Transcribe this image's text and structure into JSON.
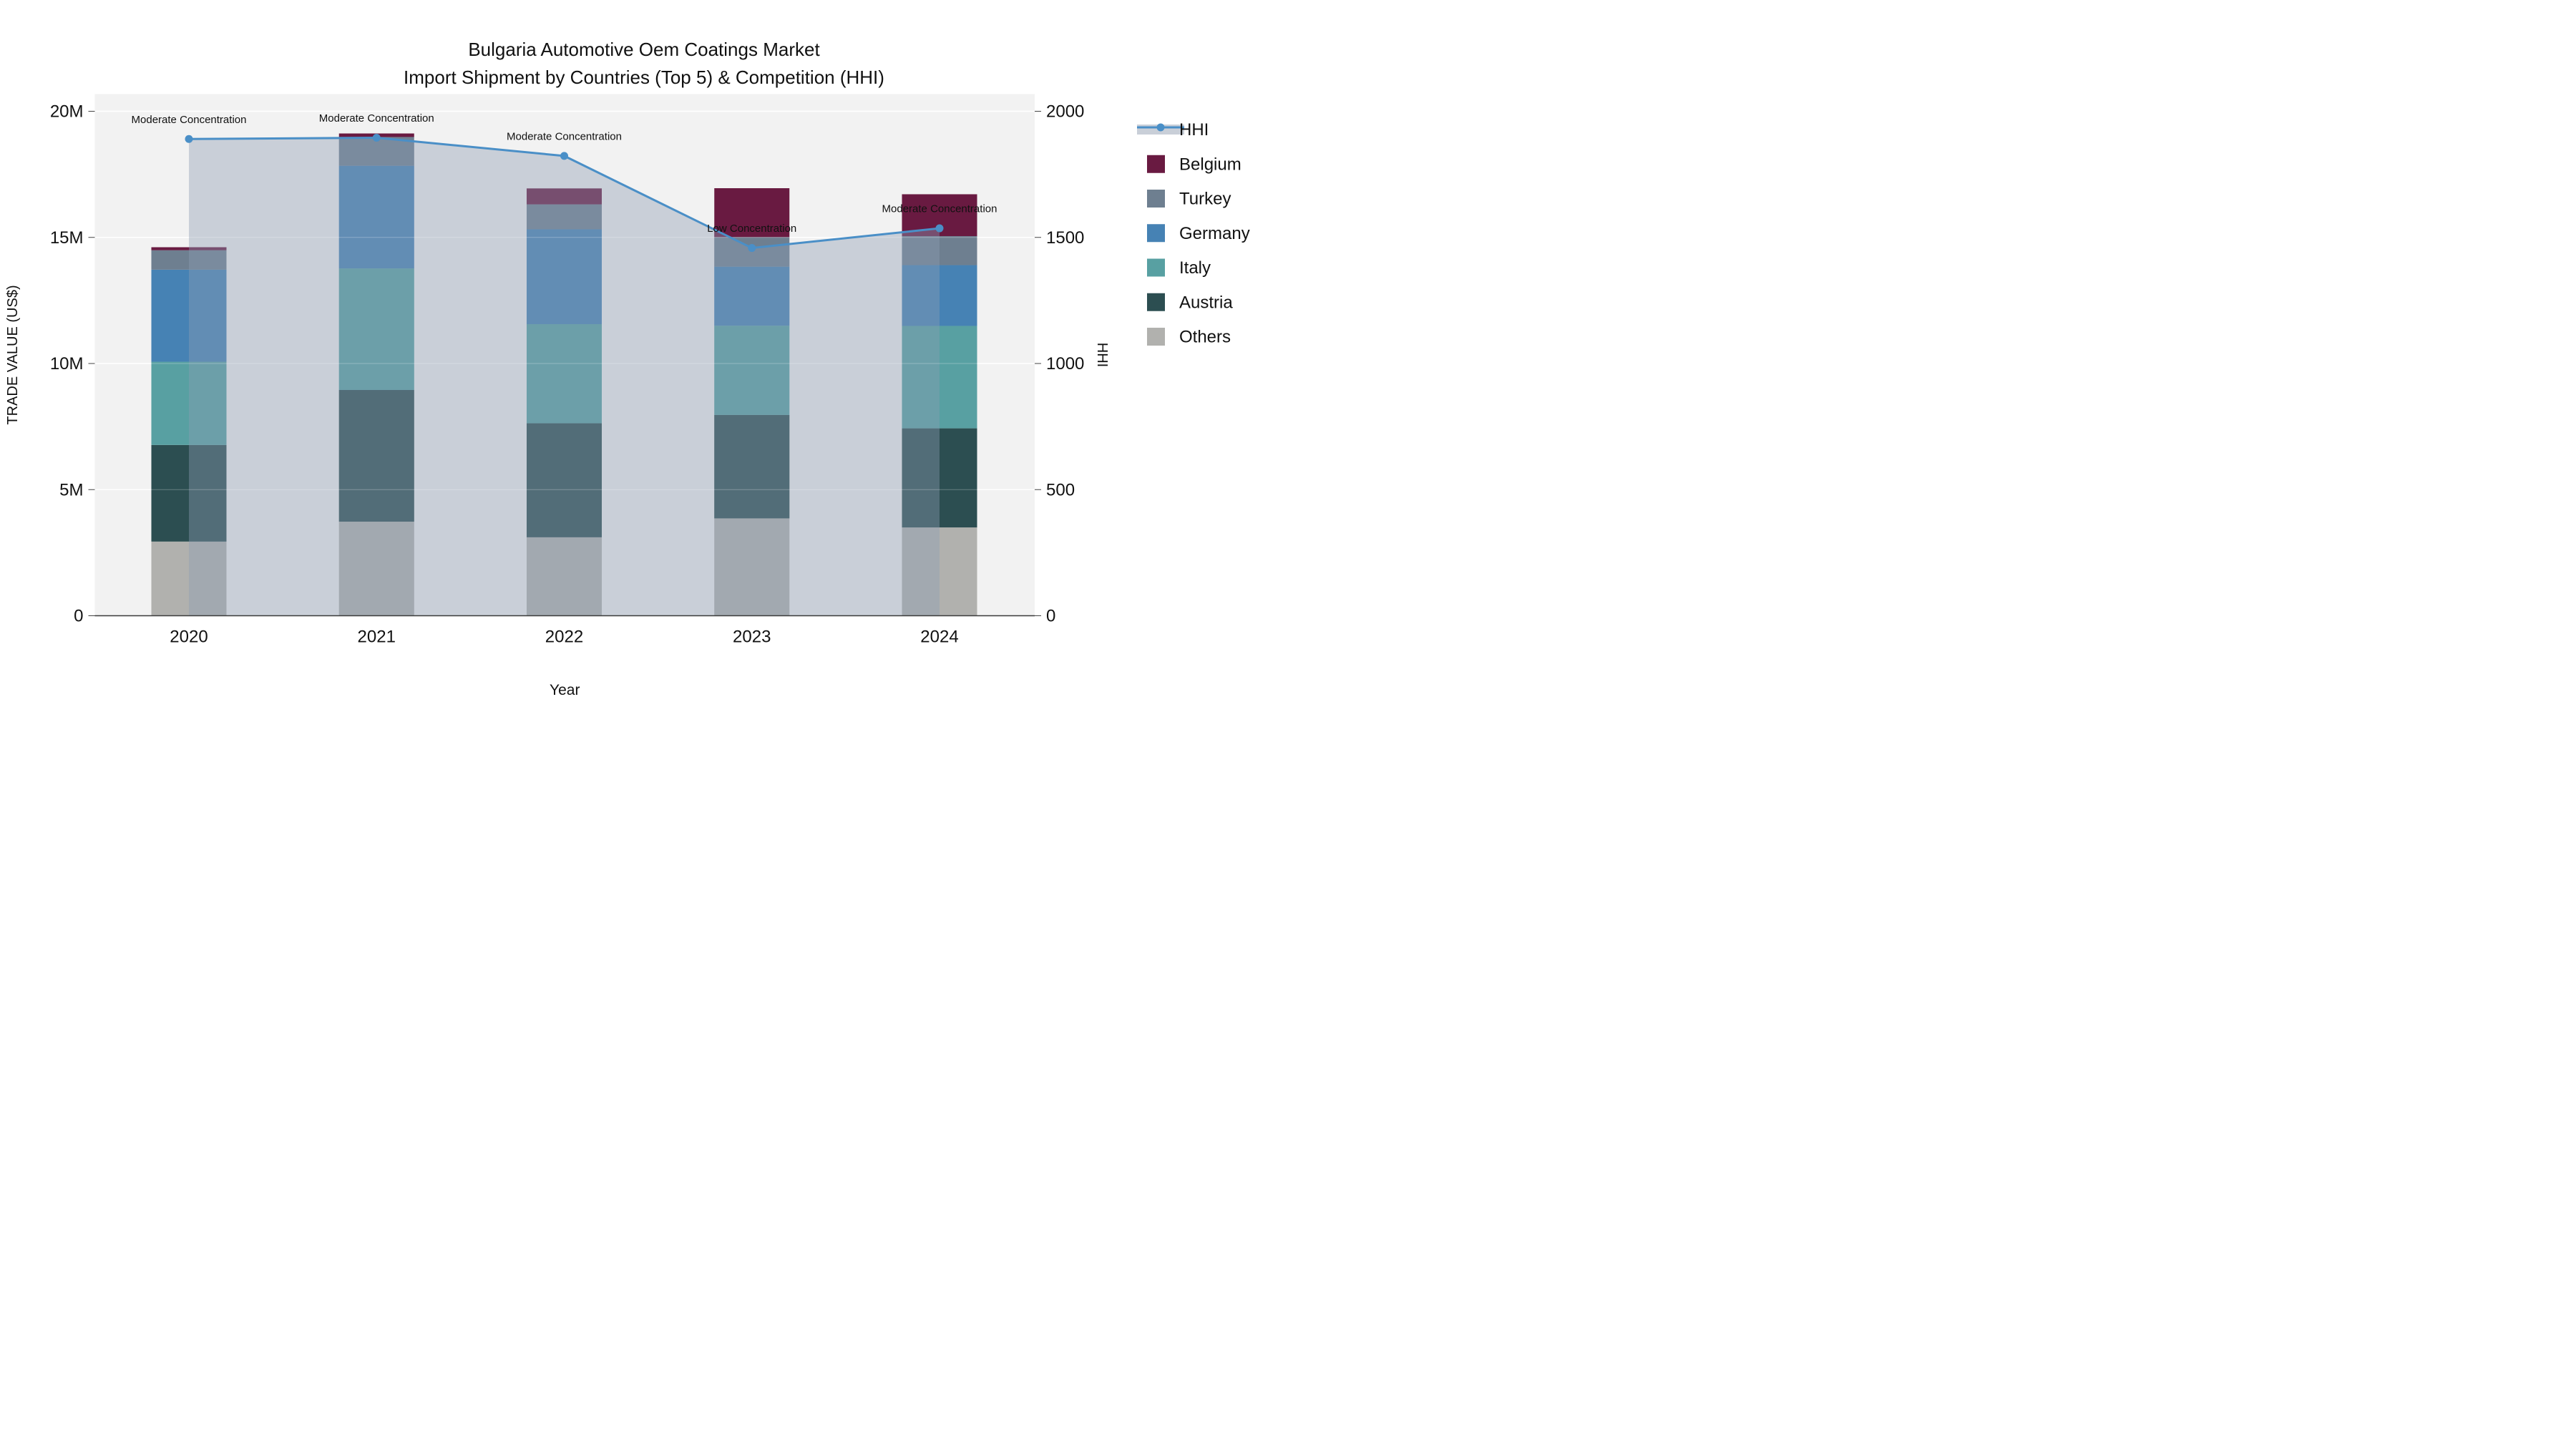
{
  "title_line1": "Bulgaria Automotive Oem Coatings Market",
  "title_line2": "Import Shipment by Countries (Top 5) & Competition (HHI)",
  "chart_data": {
    "type": "combo_stacked_bar_line",
    "x_axis_title": "Year",
    "y_axis_title": "TRADE VALUE (US$)",
    "y2_axis_title": "HHI",
    "categories": [
      "2020",
      "2021",
      "2022",
      "2023",
      "2024"
    ],
    "y_tick_labels": [
      "0",
      "5M",
      "10M",
      "15M",
      "20M"
    ],
    "y_tick_values": [
      0,
      5,
      10,
      15,
      20
    ],
    "ylim": [
      0,
      20
    ],
    "y2_tick_labels": [
      "0",
      "500",
      "1000",
      "1500",
      "2000"
    ],
    "y2_tick_values": [
      0,
      500,
      1000,
      1500,
      2000
    ],
    "y2lim": [
      0,
      2000
    ],
    "grid": true,
    "bar_stack_order_bottom_to_top": [
      "Others",
      "Austria",
      "Italy",
      "Germany",
      "Turkey",
      "Belgium"
    ],
    "series": [
      {
        "name": "Others",
        "type": "bar",
        "values_musd": [
          2.94,
          3.73,
          3.11,
          3.86,
          3.5
        ]
      },
      {
        "name": "Austria",
        "type": "bar",
        "values_musd": [
          3.83,
          5.22,
          4.52,
          4.1,
          3.93
        ]
      },
      {
        "name": "Italy",
        "type": "bar",
        "values_musd": [
          3.3,
          4.82,
          3.93,
          3.54,
          4.06
        ]
      },
      {
        "name": "Germany",
        "type": "bar",
        "values_musd": [
          3.65,
          4.07,
          3.76,
          2.34,
          2.41
        ]
      },
      {
        "name": "Turkey",
        "type": "bar",
        "values_musd": [
          0.77,
          1.14,
          0.99,
          1.17,
          1.15
        ]
      },
      {
        "name": "Belgium",
        "type": "bar",
        "values_musd": [
          0.12,
          0.14,
          0.63,
          1.94,
          1.66
        ]
      }
    ],
    "bar_totals_musd": [
      14.61,
      19.12,
      16.94,
      16.95,
      16.71
    ],
    "line_series": {
      "name": "HHI",
      "type": "line_area",
      "values": [
        1890,
        1895,
        1823,
        1458,
        1536
      ]
    },
    "annotations": [
      "Moderate Concentration",
      "Moderate Concentration",
      "Moderate Concentration",
      "Low Concentration",
      "Moderate Concentration"
    ],
    "legend_position": "top-right-outside",
    "legend_order": [
      "HHI",
      "Belgium",
      "Turkey",
      "Germany",
      "Italy",
      "Austria",
      "Others"
    ]
  },
  "colors": {
    "plot_bg": "#f2f2f2",
    "grid": "#ffffff",
    "axis_line": "#3a3a3a",
    "tick": "#444444",
    "text": "#111111",
    "hhi_line": "#4a8fc7",
    "hhi_area_fill": "#c9cfd8",
    "bar_mute_overlay": "rgba(140,158,180,0.40)",
    "by_country": {
      "Belgium": "#691a41",
      "Turkey": "#6e7f90",
      "Germany": "#4682b4",
      "Italy": "#58a0a2",
      "Austria": "#2c4e51",
      "Others": "#b1b1ae"
    }
  }
}
